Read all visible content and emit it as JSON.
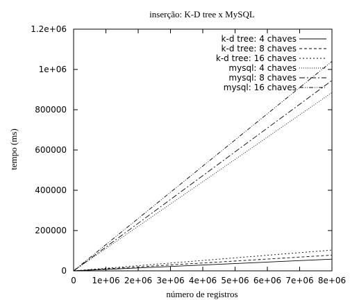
{
  "chart_data": {
    "type": "line",
    "title": "inserção: K-D tree x MySQL",
    "xlabel": "número de registros",
    "ylabel": "tempo (ms)",
    "xlim": [
      0,
      8000000
    ],
    "ylim": [
      0,
      1200000
    ],
    "xticks": [
      0,
      1000000,
      2000000,
      3000000,
      4000000,
      5000000,
      6000000,
      7000000,
      8000000
    ],
    "xtick_labels": [
      "0",
      "1e+06",
      "2e+06",
      "3e+06",
      "4e+06",
      "5e+06",
      "6e+06",
      "7e+06",
      "8e+06"
    ],
    "yticks": [
      0,
      200000,
      400000,
      600000,
      800000,
      1000000,
      1200000
    ],
    "ytick_labels": [
      "0",
      "200000",
      "400000",
      "600000",
      "800000",
      "1e+06",
      "1.2e+06"
    ],
    "grid": false,
    "legend_position": "top-right",
    "series": [
      {
        "name": "k-d tree: 4 chaves",
        "x": [
          0,
          8000000
        ],
        "y": [
          0,
          58000
        ],
        "dash": ""
      },
      {
        "name": "k-d tree: 8 chaves",
        "x": [
          0,
          8000000
        ],
        "y": [
          0,
          78000
        ],
        "dash": "4,3"
      },
      {
        "name": "k-d tree: 16 chaves",
        "x": [
          0,
          8000000
        ],
        "y": [
          0,
          103000
        ],
        "dash": "2,3"
      },
      {
        "name": "mysql: 4 chaves",
        "x": [
          0,
          8000000
        ],
        "y": [
          0,
          885000
        ],
        "dash": "1,2"
      },
      {
        "name": "mysql: 8 chaves",
        "x": [
          0,
          8000000
        ],
        "y": [
          0,
          945000
        ],
        "dash": "8,3,2,3"
      },
      {
        "name": "mysql: 16 chaves",
        "x": [
          0,
          8000000
        ],
        "y": [
          0,
          1040000
        ],
        "dash": "6,2,1,2,1,2"
      }
    ]
  }
}
